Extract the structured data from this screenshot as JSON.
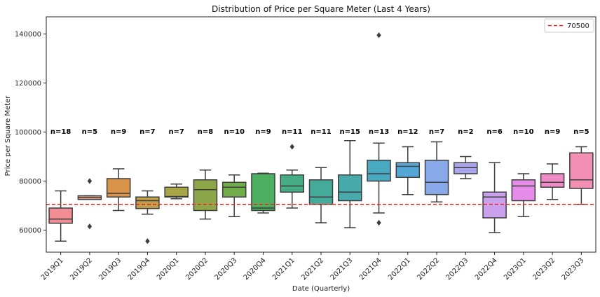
{
  "chart_data": {
    "type": "box",
    "title": "Distribution of Price per Square Meter (Last 4 Years)",
    "xlabel": "Date (Quarterly)",
    "ylabel": "Price per Square Meter",
    "ylim": [
      51000,
      147000
    ],
    "yticks": [
      60000,
      80000,
      100000,
      120000,
      140000
    ],
    "grid": false,
    "legend_position": "top-right",
    "reference_line": {
      "value": 70500,
      "label": "70500",
      "color": "#e8231b",
      "style": "dashed"
    },
    "categories": [
      "2019Q1",
      "2019Q2",
      "2019Q3",
      "2019Q4",
      "2020Q1",
      "2020Q2",
      "2020Q3",
      "2020Q4",
      "2021Q1",
      "2021Q2",
      "2021Q3",
      "2021Q4",
      "2022Q1",
      "2022Q2",
      "2022Q3",
      "2022Q4",
      "2023Q1",
      "2023Q2",
      "2023Q3"
    ],
    "boxes": [
      {
        "whisker_low": 55500,
        "q1": 62800,
        "median": 64500,
        "q3": 69000,
        "whisker_high": 76000,
        "outliers": [],
        "n": 18
      },
      {
        "whisker_low": 72500,
        "q1": 72500,
        "median": 73300,
        "q3": 74000,
        "whisker_high": 74000,
        "outliers": [
          61500,
          80000
        ],
        "n": 5
      },
      {
        "whisker_low": 68000,
        "q1": 73500,
        "median": 75000,
        "q3": 81000,
        "whisker_high": 85000,
        "outliers": [],
        "n": 9
      },
      {
        "whisker_low": 66500,
        "q1": 68800,
        "median": 72000,
        "q3": 73500,
        "whisker_high": 76000,
        "outliers": [
          55500
        ],
        "n": 7
      },
      {
        "whisker_low": 72800,
        "q1": 73500,
        "median": 73700,
        "q3": 77500,
        "whisker_high": 78800,
        "outliers": [],
        "n": 7
      },
      {
        "whisker_low": 64500,
        "q1": 68000,
        "median": 76500,
        "q3": 80500,
        "whisker_high": 84500,
        "outliers": [],
        "n": 8
      },
      {
        "whisker_low": 65500,
        "q1": 73500,
        "median": 77500,
        "q3": 79500,
        "whisker_high": 82500,
        "outliers": [],
        "n": 10
      },
      {
        "whisker_low": 67000,
        "q1": 68000,
        "median": 69000,
        "q3": 83000,
        "whisker_high": 83200,
        "outliers": [],
        "n": 9
      },
      {
        "whisker_low": 69000,
        "q1": 75500,
        "median": 78000,
        "q3": 82500,
        "whisker_high": 84500,
        "outliers": [
          94000
        ],
        "n": 11
      },
      {
        "whisker_low": 63000,
        "q1": 70500,
        "median": 73500,
        "q3": 80500,
        "whisker_high": 85500,
        "outliers": [],
        "n": 11
      },
      {
        "whisker_low": 61000,
        "q1": 72000,
        "median": 75500,
        "q3": 82500,
        "whisker_high": 96500,
        "outliers": [],
        "n": 15
      },
      {
        "whisker_low": 67000,
        "q1": 80000,
        "median": 83000,
        "q3": 88500,
        "whisker_high": 95500,
        "outliers": [
          63000,
          139500
        ],
        "n": 13
      },
      {
        "whisker_low": 74500,
        "q1": 81500,
        "median": 86000,
        "q3": 87500,
        "whisker_high": 94000,
        "outliers": [],
        "n": 12
      },
      {
        "whisker_low": 71500,
        "q1": 74500,
        "median": 79500,
        "q3": 88500,
        "whisker_high": 96000,
        "outliers": [],
        "n": 7
      },
      {
        "whisker_low": 81000,
        "q1": 83000,
        "median": 85500,
        "q3": 87500,
        "whisker_high": 90000,
        "outliers": [],
        "n": 2
      },
      {
        "whisker_low": 59000,
        "q1": 65000,
        "median": 73500,
        "q3": 75500,
        "whisker_high": 87500,
        "outliers": [],
        "n": 6
      },
      {
        "whisker_low": 65500,
        "q1": 72000,
        "median": 78000,
        "q3": 80500,
        "whisker_high": 83000,
        "outliers": [],
        "n": 10
      },
      {
        "whisker_low": 72500,
        "q1": 77500,
        "median": 79500,
        "q3": 83000,
        "whisker_high": 87000,
        "outliers": [],
        "n": 9
      },
      {
        "whisker_low": 70500,
        "q1": 77000,
        "median": 80500,
        "q3": 91500,
        "whisker_high": 94000,
        "outliers": [],
        "n": 5
      }
    ],
    "colors": [
      "#f08d95",
      "#e29a82",
      "#d9944a",
      "#bf9f4b",
      "#a9a648",
      "#8ea64a",
      "#70ac49",
      "#4caf5f",
      "#45ac86",
      "#46aa9a",
      "#48aaab",
      "#49a9c1",
      "#55a8d6",
      "#87a9ea",
      "#aca6ed",
      "#c9a1ec",
      "#e58ce8",
      "#ef8cc5",
      "#f28fb2"
    ]
  }
}
